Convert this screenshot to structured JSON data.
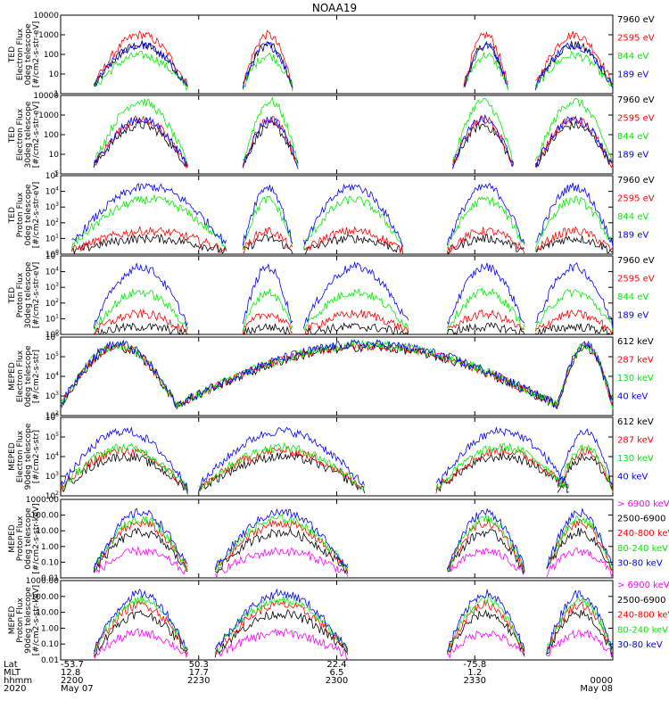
{
  "title": "NOAA19",
  "colors": {
    "black": "#000000",
    "red": "#ff0000",
    "green": "#00ee00",
    "blue": "#0000ff",
    "magenta": "#ff00ff"
  },
  "chart_data": [
    {
      "type": "line",
      "ylabel": [
        "TED",
        "Electron Flux",
        "0deg telescope",
        "[#/cm2-s-str-eV]"
      ],
      "y_ticks": [
        "10000",
        "1000",
        "100",
        "10",
        "1"
      ],
      "log_scale": true,
      "ylim": [
        1,
        10000
      ],
      "legend": [
        "7960 eV",
        "2595 eV",
        "844 eV",
        "189 eV"
      ],
      "legend_colors": [
        "#000000",
        "#ff0000",
        "#00ee00",
        "#0000ff"
      ],
      "approx_peaks": [
        300,
        1000,
        90,
        300
      ]
    },
    {
      "type": "line",
      "ylabel": [
        "TED",
        "Electron Flux",
        "30deg telescope",
        "[#/cm2-s-str-eV]"
      ],
      "y_ticks": [
        "10000",
        "1000",
        "100",
        "10",
        "1"
      ],
      "log_scale": true,
      "ylim": [
        1,
        10000
      ],
      "legend": [
        "7960 eV",
        "2595 eV",
        "844 eV",
        "189 eV"
      ],
      "legend_colors": [
        "#000000",
        "#ff0000",
        "#00ee00",
        "#0000ff"
      ],
      "approx_peaks": [
        300,
        600,
        5000,
        600
      ]
    },
    {
      "type": "line",
      "ylabel": [
        "TED",
        "Proton Flux",
        "0deg telescope",
        "[#/cm2-s-str-eV]"
      ],
      "y_ticks": [
        "10^5",
        "10^4",
        "10^3",
        "10^2",
        "10^1",
        "10^0"
      ],
      "log_scale": true,
      "ylim": [
        1,
        100000
      ],
      "legend": [
        "7960 eV",
        "2595 eV",
        "844 eV",
        "189 eV"
      ],
      "legend_colors": [
        "#000000",
        "#ff0000",
        "#00ee00",
        "#0000ff"
      ],
      "approx_peaks": [
        10,
        30,
        3000,
        20000
      ]
    },
    {
      "type": "line",
      "ylabel": [
        "TED",
        "Proton Flux",
        "30deg telescope",
        "[#/cm2-s-str-eV]"
      ],
      "y_ticks": [
        "10^5",
        "10^4",
        "10^3",
        "10^2",
        "10^1",
        "10^0"
      ],
      "log_scale": true,
      "ylim": [
        1,
        100000
      ],
      "legend": [
        "7960 eV",
        "2595 eV",
        "844 eV",
        "189 eV"
      ],
      "legend_colors": [
        "#000000",
        "#ff0000",
        "#00ee00",
        "#0000ff"
      ],
      "approx_peaks": [
        3,
        20,
        500,
        20000
      ]
    },
    {
      "type": "line",
      "ylabel": [
        "MEPED",
        "Electron Flux",
        "0deg telescope",
        "[#/cm2-s-str]"
      ],
      "y_ticks": [
        "10^6",
        "10^5",
        "10^4",
        "10^3",
        "10^2"
      ],
      "log_scale": true,
      "ylim": [
        100,
        1000000
      ],
      "legend": [
        "612 keV",
        "287 keV",
        "130 keV",
        "40 keV"
      ],
      "legend_colors": [
        "#000000",
        "#ff0000",
        "#00ee00",
        "#0000ff"
      ],
      "approx_peaks": [
        300000,
        350000,
        400000,
        450000
      ]
    },
    {
      "type": "line",
      "ylabel": [
        "MEPED",
        "Electron Flux",
        "90deg telescope",
        "[#/cm2-s-str]"
      ],
      "y_ticks": [
        "10^6",
        "10^5",
        "10^4",
        "10^3",
        "10^2"
      ],
      "log_scale": true,
      "ylim": [
        100,
        1000000
      ],
      "legend": [
        "612 keV",
        "287 keV",
        "130 keV",
        "40 keV"
      ],
      "legend_colors": [
        "#000000",
        "#ff0000",
        "#00ee00",
        "#0000ff"
      ],
      "approx_peaks": [
        10000,
        20000,
        30000,
        200000
      ]
    },
    {
      "type": "line",
      "ylabel": [
        "MEPED",
        "Proton Flux",
        "0deg telescope",
        "[#/cm2-s-str-keV]"
      ],
      "y_ticks": [
        "1000.00",
        "100.00",
        "10.00",
        "1.00",
        "0.10",
        "0.01"
      ],
      "log_scale": true,
      "ylim": [
        0.01,
        1000
      ],
      "legend": [
        "> 6900 keV",
        "2500-6900",
        "240-800 keV",
        "80-240 keV",
        "30-80 keV"
      ],
      "legend_colors": [
        "#ff00ff",
        "#000000",
        "#ff0000",
        "#00ee00",
        "#0000ff"
      ],
      "approx_peaks": [
        0.5,
        8,
        30,
        60,
        150
      ]
    },
    {
      "type": "line",
      "ylabel": [
        "MEPED",
        "Proton Flux",
        "90deg telescope",
        "[#/cm2-s-str-keV]"
      ],
      "y_ticks": [
        "1000.00",
        "100.00",
        "10.00",
        "1.00",
        "0.10",
        "0.01"
      ],
      "log_scale": true,
      "ylim": [
        0.01,
        1000
      ],
      "legend": [
        "> 6900 keV",
        "2500-6900",
        "240-800 keV",
        "80-240 keV",
        "30-80 keV"
      ],
      "legend_colors": [
        "#ff00ff",
        "#000000",
        "#ff0000",
        "#00ee00",
        "#0000ff"
      ],
      "approx_peaks": [
        0.5,
        8,
        30,
        60,
        150
      ]
    }
  ],
  "x_axis": {
    "row_labels": [
      "Lat",
      "MLT",
      "hhmm",
      "2020"
    ],
    "columns": [
      {
        "lat": "-53.7",
        "mlt": "12.8",
        "hhmm": "2200",
        "extra": "May 07"
      },
      {
        "lat": "50.3",
        "mlt": "17.7",
        "hhmm": "2230",
        "extra": ""
      },
      {
        "lat": "22.4",
        "mlt": "6.5",
        "hhmm": "2300",
        "extra": ""
      },
      {
        "lat": "-75.8",
        "mlt": "1.2",
        "hhmm": "2330",
        "extra": ""
      },
      {
        "lat": "",
        "mlt": "",
        "hhmm": "0000",
        "extra": "May 08"
      }
    ]
  }
}
